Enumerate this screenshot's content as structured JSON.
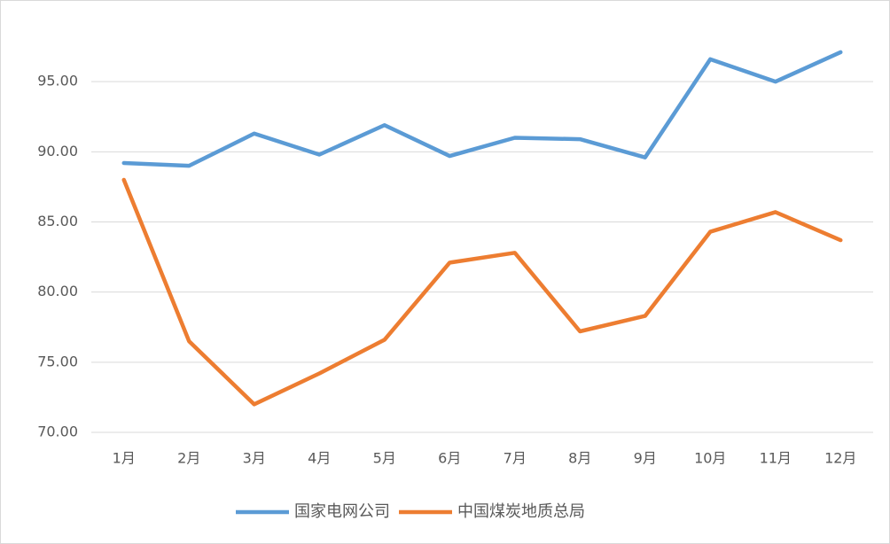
{
  "chart_data": {
    "type": "line",
    "categories": [
      "1月",
      "2月",
      "3月",
      "4月",
      "5月",
      "6月",
      "7月",
      "8月",
      "9月",
      "10月",
      "11月",
      "12月"
    ],
    "series": [
      {
        "name": "国家电网公司",
        "color": "#5b9bd5",
        "values": [
          89.2,
          89.0,
          91.3,
          89.8,
          91.9,
          89.7,
          91.0,
          90.9,
          89.6,
          96.6,
          95.0,
          97.1
        ]
      },
      {
        "name": "中国煤炭地质总局",
        "color": "#ed7d31",
        "values": [
          88.0,
          76.5,
          72.0,
          74.2,
          76.6,
          82.1,
          82.8,
          77.2,
          78.3,
          84.3,
          85.7,
          83.7
        ]
      }
    ],
    "ylim": [
      70,
      100
    ],
    "yticks": [
      {
        "value": 70,
        "label": "70.00"
      },
      {
        "value": 75,
        "label": "75.00"
      },
      {
        "value": 80,
        "label": "80.00"
      },
      {
        "value": 85,
        "label": "85.00"
      },
      {
        "value": 90,
        "label": "90.00"
      },
      {
        "value": 95,
        "label": "95.00"
      }
    ],
    "grid": true,
    "legend": "bottom"
  }
}
